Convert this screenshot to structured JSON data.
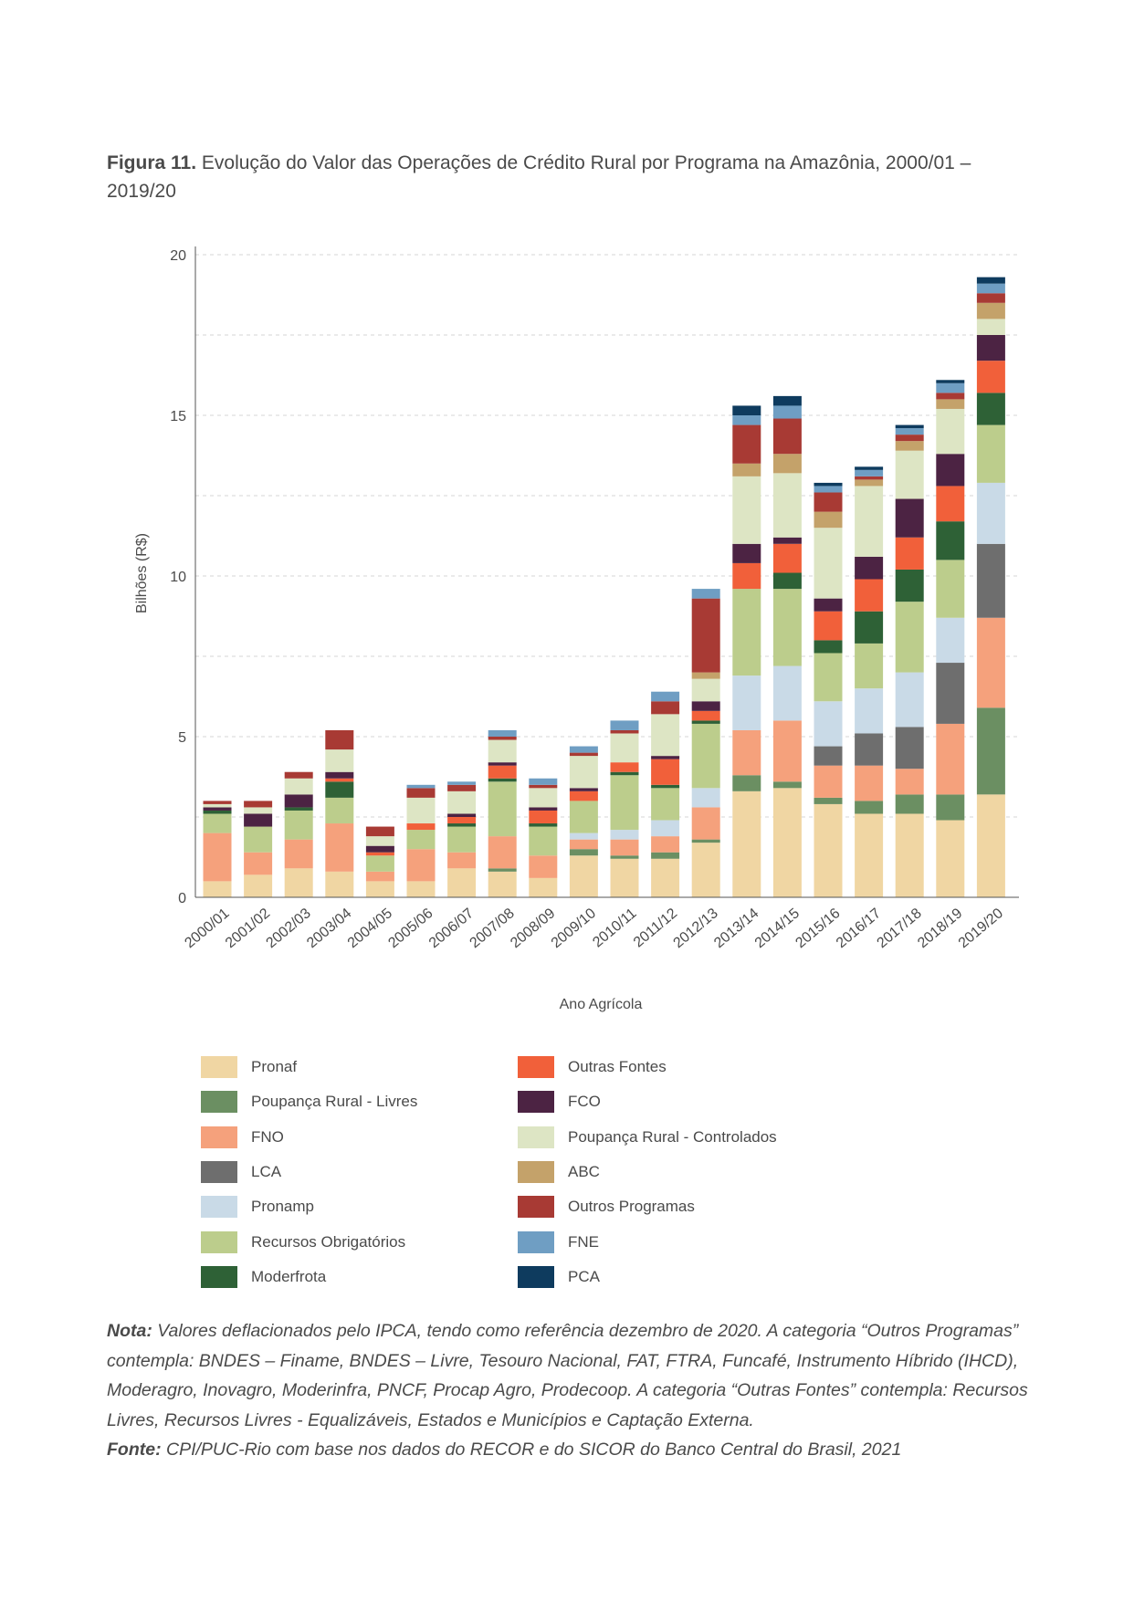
{
  "figure": {
    "label": "Figura 11.",
    "title": "Evolução do Valor das Operações de Crédito Rural por Programa na Amazônia, 2000/01 – 2019/20"
  },
  "chart_data": {
    "type": "bar",
    "stacked": true,
    "xlabel": "Ano Agrícola",
    "ylabel": "Bilhões (R$)",
    "ylim": [
      0,
      20
    ],
    "yticks": [
      0,
      5,
      10,
      15,
      20
    ],
    "grid": "dashed horizontal lines at 5, 10, 15, 20 and midpoints",
    "legend_placement": "bottom, two columns",
    "categories": [
      "2000/01",
      "2001/02",
      "2002/03",
      "2003/04",
      "2004/05",
      "2005/06",
      "2006/07",
      "2007/08",
      "2008/09",
      "2009/10",
      "2010/11",
      "2011/12",
      "2012/13",
      "2013/14",
      "2014/15",
      "2015/16",
      "2016/17",
      "2017/18",
      "2018/19",
      "2019/20"
    ],
    "series": [
      {
        "name": "Pronaf",
        "color": "#f0d6a3",
        "values": [
          0.5,
          0.7,
          0.9,
          0.8,
          0.5,
          0.5,
          0.9,
          0.8,
          0.6,
          1.3,
          1.2,
          1.2,
          1.7,
          3.3,
          3.4,
          2.9,
          2.6,
          2.6,
          2.4,
          3.2
        ]
      },
      {
        "name": "Poupança Rural - Livres",
        "color": "#6b8f62",
        "values": [
          0,
          0,
          0,
          0,
          0,
          0,
          0,
          0.1,
          0,
          0.2,
          0.1,
          0.2,
          0.1,
          0.5,
          0.2,
          0.2,
          0.4,
          0.6,
          0.8,
          2.7
        ]
      },
      {
        "name": "FNO",
        "color": "#f5a17c",
        "values": [
          1.5,
          0.7,
          0.9,
          1.5,
          0.3,
          1.0,
          0.5,
          1.0,
          0.7,
          0.3,
          0.5,
          0.5,
          1.0,
          1.4,
          1.9,
          1.0,
          1.1,
          0.8,
          2.2,
          2.8
        ]
      },
      {
        "name": "LCA",
        "color": "#6e6e6e",
        "values": [
          0,
          0,
          0,
          0,
          0,
          0,
          0,
          0,
          0,
          0,
          0,
          0,
          0,
          0,
          0,
          0.6,
          1.0,
          1.3,
          1.9,
          2.3
        ]
      },
      {
        "name": "Pronamp",
        "color": "#c9dae7",
        "values": [
          0,
          0,
          0,
          0,
          0,
          0,
          0,
          0,
          0,
          0.2,
          0.3,
          0.5,
          0.6,
          1.7,
          1.7,
          1.4,
          1.4,
          1.7,
          1.4,
          1.9
        ]
      },
      {
        "name": "Recursos Obrigatórios",
        "color": "#bccd8c",
        "values": [
          0.6,
          0.8,
          0.9,
          0.8,
          0.5,
          0.6,
          0.8,
          1.7,
          0.9,
          1.0,
          1.7,
          1.0,
          2.0,
          2.7,
          2.4,
          1.5,
          1.4,
          2.2,
          1.8,
          1.8
        ]
      },
      {
        "name": "Moderfrota",
        "color": "#2e6136",
        "values": [
          0.1,
          0,
          0.1,
          0.5,
          0,
          0,
          0.1,
          0.1,
          0.1,
          0,
          0.1,
          0.1,
          0.1,
          0,
          0.5,
          0.4,
          1.0,
          1.0,
          1.2,
          1.0
        ]
      },
      {
        "name": "Outras Fontes",
        "color": "#f1603a",
        "values": [
          0,
          0,
          0,
          0.1,
          0.1,
          0.2,
          0.2,
          0.4,
          0.4,
          0.3,
          0.3,
          0.8,
          0.3,
          0.8,
          0.9,
          0.9,
          1.0,
          1.0,
          1.1,
          1.0
        ]
      },
      {
        "name": "FCO",
        "color": "#4c2343",
        "values": [
          0.1,
          0.4,
          0.4,
          0.2,
          0.2,
          0,
          0.1,
          0.1,
          0.1,
          0.1,
          0,
          0.1,
          0.3,
          0.6,
          0.2,
          0.4,
          0.7,
          1.2,
          1.0,
          0.8
        ]
      },
      {
        "name": "Poupança Rural - Controlados",
        "color": "#dde5c4",
        "values": [
          0.1,
          0.2,
          0.5,
          0.7,
          0.3,
          0.8,
          0.7,
          0.7,
          0.6,
          1.0,
          0.9,
          1.3,
          0.7,
          2.1,
          2.0,
          2.2,
          2.2,
          1.5,
          1.4,
          0.5
        ]
      },
      {
        "name": "ABC",
        "color": "#c4a26a",
        "values": [
          0,
          0,
          0,
          0,
          0,
          0,
          0,
          0,
          0,
          0,
          0,
          0,
          0.2,
          0.4,
          0.6,
          0.5,
          0.2,
          0.3,
          0.3,
          0.5
        ]
      },
      {
        "name": "Outros Programas",
        "color": "#a83a34",
        "values": [
          0.1,
          0.2,
          0.2,
          0.6,
          0.3,
          0.3,
          0.2,
          0.1,
          0.1,
          0.1,
          0.1,
          0.4,
          2.3,
          1.2,
          1.1,
          0.6,
          0.1,
          0.2,
          0.2,
          0.3
        ]
      },
      {
        "name": "FNE",
        "color": "#6f9ec3",
        "values": [
          0,
          0,
          0,
          0,
          0,
          0.1,
          0.1,
          0.2,
          0.2,
          0.2,
          0.3,
          0.3,
          0.3,
          0.3,
          0.4,
          0.2,
          0.2,
          0.2,
          0.3,
          0.3
        ]
      },
      {
        "name": "PCA",
        "color": "#0e3b5e",
        "values": [
          0,
          0,
          0,
          0,
          0,
          0,
          0,
          0,
          0,
          0,
          0,
          0,
          0,
          0.3,
          0.3,
          0.1,
          0.1,
          0.1,
          0.1,
          0.2
        ]
      }
    ]
  },
  "notes": {
    "nota_label": "Nota:",
    "nota_text": "Valores deflacionados pelo IPCA, tendo como referência dezembro de 2020. A categoria “Outros Programas” contempla: BNDES – Finame, BNDES – Livre, Tesouro Nacional, FAT, FTRA, Funcafé, Instrumento Híbrido (IHCD), Moderagro, Inovagro, Moderinfra, PNCF, Procap Agro, Prodecoop. A categoria “Outras Fontes” contempla: Recursos Livres, Recursos Livres - Equalizáveis, Estados e Municípios e Captação Externa.",
    "fonte_label": "Fonte:",
    "fonte_text": "CPI/PUC-Rio com base nos dados do RECOR e do SICOR do Banco Central do Brasil, 2021"
  }
}
